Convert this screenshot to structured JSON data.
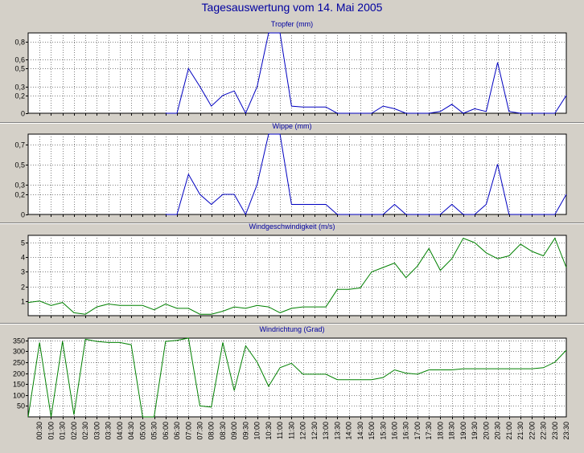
{
  "page": {
    "title": "Tagesauswertung vom 14. Mai 2005"
  },
  "colors": {
    "background": "#d4d0c8",
    "plot_background": "#ffffff",
    "title": "#0000a0",
    "series_blue": "#0000c0",
    "series_green": "#008000",
    "grid": "#808080"
  },
  "chart_data": [
    {
      "type": "line",
      "title": "Tropfer (mm)",
      "ylim": [
        0,
        0.9
      ],
      "yticks": [
        0,
        0.2,
        0.3,
        0.5,
        0.6,
        0.8
      ],
      "ytick_labels": [
        "0",
        "0,2",
        "0,3",
        "0,5",
        "0,6",
        "0,8"
      ],
      "grid": true,
      "color": "#0000c0",
      "x": [
        "06:00",
        "06:30",
        "07:00",
        "07:30",
        "08:00",
        "08:30",
        "09:00",
        "09:30",
        "10:00",
        "10:30",
        "11:00",
        "11:30",
        "12:00",
        "12:30",
        "13:00",
        "13:30",
        "14:00",
        "14:30",
        "15:00",
        "15:30",
        "16:00",
        "16:30",
        "17:00",
        "17:30",
        "18:00",
        "18:30",
        "19:00",
        "19:30",
        "20:00",
        "20:30",
        "21:00",
        "21:30",
        "22:00",
        "22:30",
        "23:00",
        "23:30"
      ],
      "values": [
        0,
        0,
        0.5,
        0.3,
        0.08,
        0.2,
        0.25,
        0,
        0.3,
        0.9,
        0.9,
        0.08,
        0.07,
        0.07,
        0.07,
        0,
        0,
        0,
        0,
        0.08,
        0.05,
        0,
        0,
        0,
        0.02,
        0.1,
        0,
        0.05,
        0.02,
        0.57,
        0.02,
        0,
        0,
        0,
        0,
        0.2
      ]
    },
    {
      "type": "line",
      "title": "Wippe (mm)",
      "ylim": [
        0,
        0.8
      ],
      "yticks": [
        0,
        0.2,
        0.3,
        0.5,
        0.7
      ],
      "ytick_labels": [
        "0",
        "0,2",
        "0,3",
        "0,5",
        "0,7"
      ],
      "grid": true,
      "color": "#0000c0",
      "x": [
        "06:00",
        "06:30",
        "07:00",
        "07:30",
        "08:00",
        "08:30",
        "09:00",
        "09:30",
        "10:00",
        "10:30",
        "11:00",
        "11:30",
        "12:00",
        "12:30",
        "13:00",
        "13:30",
        "14:00",
        "14:30",
        "15:00",
        "15:30",
        "16:00",
        "16:30",
        "17:00",
        "17:30",
        "18:00",
        "18:30",
        "19:00",
        "19:30",
        "20:00",
        "20:30",
        "21:00",
        "21:30",
        "22:00",
        "22:30",
        "23:00",
        "23:30"
      ],
      "values": [
        0,
        0,
        0.4,
        0.2,
        0.1,
        0.2,
        0.2,
        0,
        0.3,
        0.8,
        0.8,
        0.1,
        0.1,
        0.1,
        0.1,
        0,
        0,
        0,
        0,
        0,
        0.1,
        0,
        0,
        0,
        0,
        0.1,
        0,
        0,
        0.1,
        0.5,
        0,
        0,
        0,
        0,
        0,
        0.2
      ]
    },
    {
      "type": "line",
      "title": "Windgeschwindigkeit (m/s)",
      "ylim": [
        0,
        5.5
      ],
      "yticks": [
        1,
        2,
        3,
        4,
        5
      ],
      "ytick_labels": [
        "1",
        "2",
        "3",
        "4",
        "5"
      ],
      "grid": true,
      "color": "#008000",
      "x": [
        "00:00",
        "00:30",
        "01:00",
        "01:30",
        "02:00",
        "02:30",
        "03:00",
        "03:30",
        "04:00",
        "04:30",
        "05:00",
        "05:30",
        "06:00",
        "06:30",
        "07:00",
        "07:30",
        "08:00",
        "08:30",
        "09:00",
        "09:30",
        "10:00",
        "10:30",
        "11:00",
        "11:30",
        "12:00",
        "12:30",
        "13:00",
        "13:30",
        "14:00",
        "14:30",
        "15:00",
        "15:30",
        "16:00",
        "16:30",
        "17:00",
        "17:30",
        "18:00",
        "18:30",
        "19:00",
        "19:30",
        "20:00",
        "20:30",
        "21:00",
        "21:30",
        "22:00",
        "22:30",
        "23:00",
        "23:30"
      ],
      "values": [
        0.9,
        1.0,
        0.7,
        0.9,
        0.2,
        0.1,
        0.6,
        0.8,
        0.7,
        0.7,
        0.7,
        0.4,
        0.8,
        0.5,
        0.5,
        0.1,
        0.1,
        0.3,
        0.6,
        0.5,
        0.7,
        0.6,
        0.2,
        0.5,
        0.6,
        0.6,
        0.6,
        1.8,
        1.8,
        1.9,
        3.0,
        3.3,
        3.6,
        2.6,
        3.4,
        4.6,
        3.1,
        3.9,
        5.3,
        5.0,
        4.3,
        3.9,
        4.1,
        4.9,
        4.4,
        4.1,
        5.3,
        3.3
      ]
    },
    {
      "type": "line",
      "title": "Windrichtung (Grad)",
      "ylim": [
        0,
        360
      ],
      "yticks": [
        50,
        100,
        150,
        200,
        250,
        300,
        350
      ],
      "ytick_labels": [
        "50",
        "100",
        "150",
        "200",
        "250",
        "300",
        "350"
      ],
      "grid": true,
      "color": "#008000",
      "xtick_labels": [
        "00:30",
        "01:00",
        "01:30",
        "02:00",
        "02:30",
        "03:00",
        "03:30",
        "04:00",
        "04:30",
        "05:00",
        "05:30",
        "06:00",
        "06:30",
        "07:00",
        "07:30",
        "08:00",
        "08:30",
        "09:00",
        "09:30",
        "10:00",
        "10:30",
        "11:00",
        "11:30",
        "12:00",
        "12:30",
        "13:00",
        "13:30",
        "14:00",
        "14:30",
        "15:00",
        "15:30",
        "16:00",
        "16:30",
        "17:00",
        "17:30",
        "18:00",
        "18:30",
        "19:00",
        "19:30",
        "20:00",
        "20:30",
        "21:00",
        "21:30",
        "22:00",
        "22:30",
        "23:00",
        "23:30"
      ],
      "x": [
        "00:00",
        "00:30",
        "01:00",
        "01:30",
        "02:00",
        "02:30",
        "03:00",
        "03:30",
        "04:00",
        "04:30",
        "05:00",
        "05:30",
        "06:00",
        "06:30",
        "07:00",
        "07:30",
        "08:00",
        "08:30",
        "09:00",
        "09:30",
        "10:00",
        "10:30",
        "11:00",
        "11:30",
        "12:00",
        "12:30",
        "13:00",
        "13:30",
        "14:00",
        "14:30",
        "15:00",
        "15:30",
        "16:00",
        "16:30",
        "17:00",
        "17:30",
        "18:00",
        "18:30",
        "19:00",
        "19:30",
        "20:00",
        "20:30",
        "21:00",
        "21:30",
        "22:00",
        "22:30",
        "23:00",
        "23:30"
      ],
      "values": [
        0,
        340,
        0,
        345,
        10,
        355,
        345,
        340,
        340,
        330,
        0,
        0,
        345,
        350,
        360,
        50,
        45,
        340,
        120,
        325,
        250,
        140,
        225,
        245,
        195,
        195,
        195,
        170,
        170,
        170,
        170,
        180,
        215,
        200,
        195,
        215,
        215,
        215,
        220,
        220,
        220,
        220,
        220,
        220,
        220,
        225,
        250,
        305
      ]
    }
  ]
}
